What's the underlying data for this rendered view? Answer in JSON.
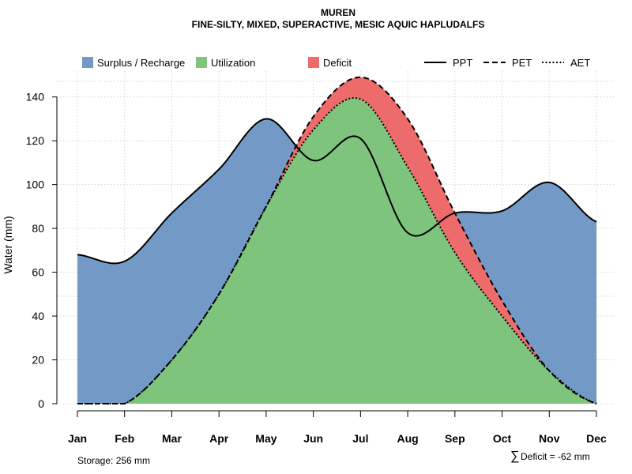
{
  "chart_data": {
    "type": "area",
    "title": "MUREN",
    "subtitle": "FINE-SILTY, MIXED, SUPERACTIVE, MESIC AQUIC HAPLUDALFS",
    "xlabel": "",
    "ylabel": "Water (mm)",
    "ylim": [
      0,
      150
    ],
    "yticks": [
      0,
      20,
      40,
      60,
      80,
      100,
      120,
      140
    ],
    "categories": [
      "Jan",
      "Feb",
      "Mar",
      "Apr",
      "May",
      "Jun",
      "Jul",
      "Aug",
      "Sep",
      "Oct",
      "Nov",
      "Dec"
    ],
    "series": [
      {
        "name": "PPT",
        "line": "solid",
        "values": [
          68,
          65,
          87,
          107,
          130,
          111,
          121,
          78,
          87,
          88,
          101,
          83
        ]
      },
      {
        "name": "PET",
        "line": "dashed",
        "values": [
          0,
          0,
          20,
          50,
          90,
          131,
          149,
          130,
          87,
          47,
          15,
          0
        ]
      },
      {
        "name": "AET",
        "line": "dotted",
        "values": [
          0,
          0,
          20,
          50,
          90,
          125,
          139,
          108,
          69,
          40,
          15,
          0
        ]
      }
    ],
    "areas": [
      {
        "name": "Surplus / Recharge",
        "color": "#7399c6"
      },
      {
        "name": "Utilization",
        "color": "#7ec47d"
      },
      {
        "name": "Deficit",
        "color": "#ee6b6b"
      }
    ],
    "legend_position": "top",
    "grid": true
  },
  "footer": {
    "storage": "Storage: 256 mm",
    "deficit_symbol": "∑",
    "deficit": "Deficit = -62 mm"
  }
}
